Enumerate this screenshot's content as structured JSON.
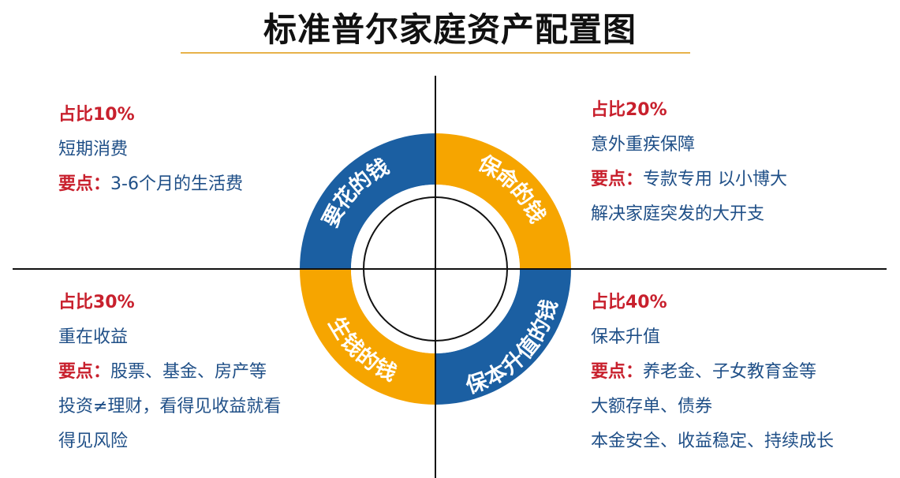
{
  "title": "标准普尔家庭资产配置图",
  "colors": {
    "blue": "#1b5fa2",
    "orange": "#f6a500",
    "red": "#c8202d",
    "text_blue": "#1f4f87"
  },
  "ring_labels": {
    "spend": "要花的钱",
    "protect": "保命的钱",
    "grow": "生钱的钱",
    "preserve": "保本升值的钱"
  },
  "quadrants": {
    "top_left": {
      "ratio": "占比10%",
      "category": "短期消费",
      "key_label": "要点：",
      "key_text": "3-6个月的生活费",
      "notes": []
    },
    "top_right": {
      "ratio": "占比20%",
      "category": "意外重疾保障",
      "key_label": "要点：",
      "key_text": "专款专用 以小博大",
      "notes": [
        "解决家庭突发的大开支"
      ]
    },
    "bottom_left": {
      "ratio": "占比30%",
      "category": "重在收益",
      "key_label": "要点：",
      "key_text": "股票、基金、房产等",
      "notes": [
        "投资≠理财，看得见收益就看",
        "得见风险"
      ]
    },
    "bottom_right": {
      "ratio": "占比40%",
      "category": "保本升值",
      "key_label": "要点：",
      "key_text": "养老金、子女教育金等",
      "notes": [
        "大额存单、债券",
        "本金安全、收益稳定、持续成长"
      ]
    }
  }
}
